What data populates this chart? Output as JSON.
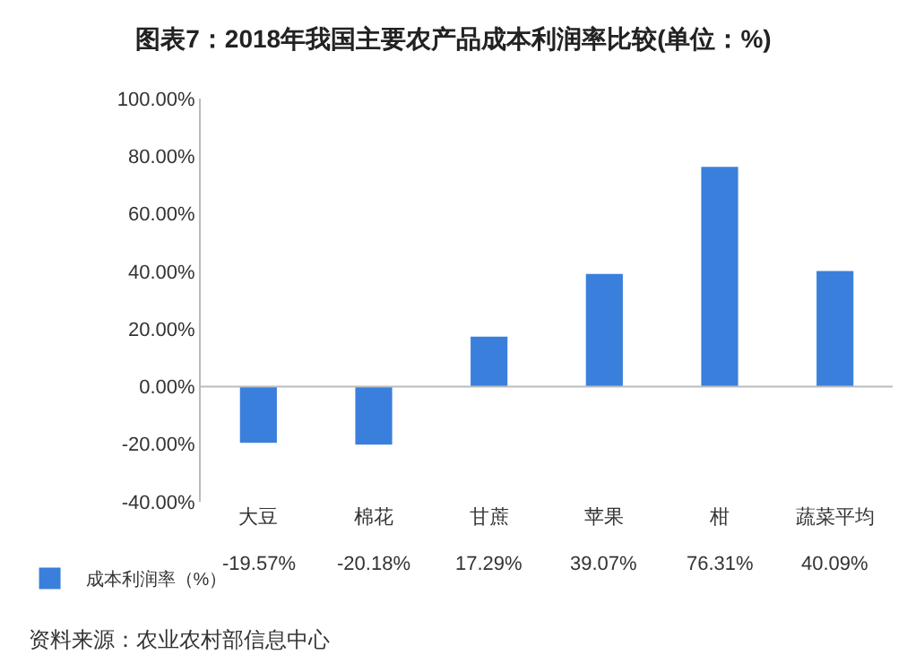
{
  "chart_data": {
    "type": "bar",
    "title": "图表7：2018年我国主要农产品成本利润率比较(单位：%)",
    "categories": [
      "大豆",
      "棉花",
      "甘蔗",
      "苹果",
      "柑",
      "蔬菜平均"
    ],
    "series": [
      {
        "name": "成本利润率（%）",
        "color": "#3a7fdc",
        "values": [
          -19.57,
          -20.18,
          17.29,
          39.07,
          76.31,
          40.09
        ],
        "value_labels": [
          "-19.57%",
          "-20.18%",
          "17.29%",
          "39.07%",
          "76.31%",
          "40.09%"
        ]
      }
    ],
    "ylim": [
      -40,
      100
    ],
    "yticks": [
      {
        "value": -40,
        "label": "-40.00%"
      },
      {
        "value": -20,
        "label": "-20.00%"
      },
      {
        "value": 0,
        "label": "0.00%"
      },
      {
        "value": 20,
        "label": "20.00%"
      },
      {
        "value": 40,
        "label": "40.00%"
      },
      {
        "value": 60,
        "label": "60.00%"
      },
      {
        "value": 80,
        "label": "80.00%"
      },
      {
        "value": 100,
        "label": "100.00%"
      }
    ],
    "grid": false,
    "legend": "bottom left",
    "ref_lines": [
      {
        "axis": "y",
        "value": 0,
        "color": "#bbbbbb"
      }
    ],
    "annotations": [
      "资料来源：农业农村部信息中心"
    ]
  }
}
